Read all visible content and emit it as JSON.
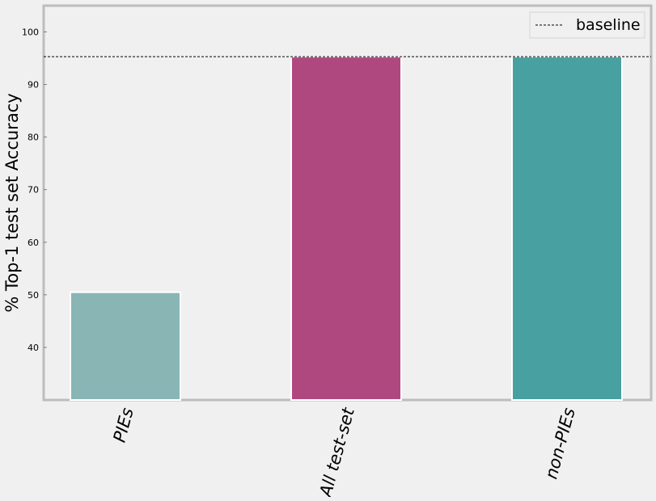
{
  "chart_data": {
    "type": "bar",
    "title": "",
    "xlabel": "",
    "ylabel": "% Top-1 test set Accuracy",
    "categories": [
      "PIEs",
      "All test-set",
      "non-PIEs"
    ],
    "values": [
      50.5,
      95.3,
      95.3
    ],
    "bar_colors": [
      "#8ab5b5",
      "#b04880",
      "#48a0a0"
    ],
    "ylim": [
      30,
      105
    ],
    "yticks": [
      40,
      50,
      60,
      70,
      80,
      90,
      100
    ],
    "baseline": {
      "label": "baseline",
      "value": 95.3,
      "style": "dashed",
      "color": "#000000"
    },
    "legend": {
      "placement": "top-right",
      "entries": [
        "baseline"
      ]
    },
    "grid": false,
    "background_color": "#f0f0f0",
    "frame_color": "#bdbdbd"
  }
}
